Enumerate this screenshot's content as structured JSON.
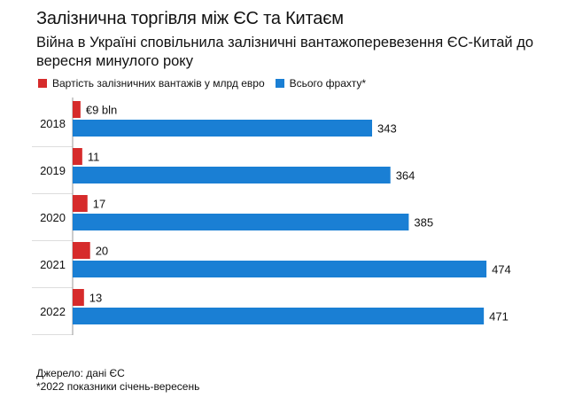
{
  "header": {
    "title": "Залізнична торгівля між ЄС та Китаєм",
    "subtitle": "Війна в Україні сповільнила залізничні вантажоперевезення ЄС-Китай до вересня минулого року"
  },
  "legend": {
    "items": [
      {
        "label": "Вартість залізничних вантажів у млрд евро",
        "color": "#d62b2b"
      },
      {
        "label": "Всього фрахту*",
        "color": "#1a7fd4"
      }
    ]
  },
  "footer": {
    "source": "Джерело: дані ЄС",
    "note": "*2022 показники січень-вересень"
  },
  "chart_data": {
    "type": "bar",
    "orientation": "horizontal",
    "categories": [
      "2018",
      "2019",
      "2020",
      "2021",
      "2022"
    ],
    "series": [
      {
        "name": "Вартість залізничних вантажів у млрд евро",
        "values": [
          9,
          11,
          17,
          20,
          13
        ],
        "labels": [
          "€9 bln",
          "11",
          "17",
          "20",
          "13"
        ],
        "color": "#d62b2b"
      },
      {
        "name": "Всього фрахту*",
        "values": [
          343,
          364,
          385,
          474,
          471
        ],
        "labels": [
          "343",
          "364",
          "385",
          "474",
          "471"
        ],
        "color": "#1a7fd4"
      }
    ],
    "xlim": [
      0,
      480
    ],
    "grid": false,
    "legend_position": "top-left"
  }
}
